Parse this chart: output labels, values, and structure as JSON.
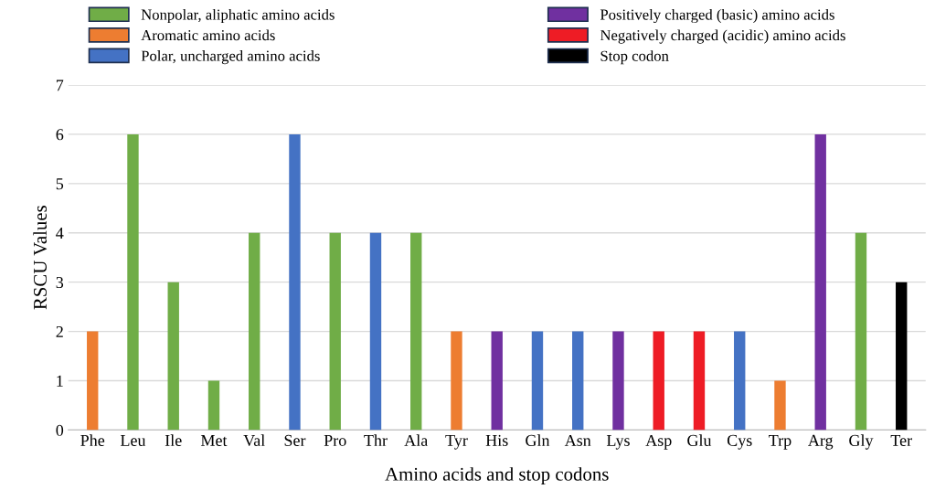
{
  "chart_data": {
    "type": "bar",
    "xlabel": "Amino acids and stop codons",
    "ylabel": "RSCU Values",
    "categories": [
      "Phe",
      "Leu",
      "Ile",
      "Met",
      "Val",
      "Ser",
      "Pro",
      "Thr",
      "Ala",
      "Tyr",
      "His",
      "Gln",
      "Asn",
      "Lys",
      "Asp",
      "Glu",
      "Cys",
      "Trp",
      "Arg",
      "Gly",
      "Ter"
    ],
    "series": [
      {
        "name": "Nonpolar, aliphatic amino acids",
        "color": "#70ad47",
        "values": [
          null,
          6,
          3,
          1,
          4,
          null,
          4,
          null,
          4,
          null,
          null,
          null,
          null,
          null,
          null,
          null,
          null,
          null,
          null,
          4,
          null
        ]
      },
      {
        "name": "Aromatic amino acids",
        "color": "#ed7d31",
        "values": [
          2,
          null,
          null,
          null,
          null,
          null,
          null,
          null,
          null,
          2,
          null,
          null,
          null,
          null,
          null,
          null,
          null,
          1,
          null,
          null,
          null
        ]
      },
      {
        "name": "Polar, uncharged amino acids",
        "color": "#4472c4",
        "values": [
          null,
          null,
          null,
          null,
          null,
          6,
          null,
          4,
          null,
          null,
          null,
          2,
          2,
          null,
          null,
          null,
          2,
          null,
          null,
          null,
          null
        ]
      },
      {
        "name": "Positively charged (basic) amino acids",
        "color": "#7030a0",
        "values": [
          null,
          null,
          null,
          null,
          null,
          null,
          null,
          null,
          null,
          null,
          2,
          null,
          null,
          2,
          null,
          null,
          null,
          null,
          6,
          null,
          null
        ]
      },
      {
        "name": "Negatively charged (acidic) amino acids",
        "color": "#ee1c25",
        "values": [
          null,
          null,
          null,
          null,
          null,
          null,
          null,
          null,
          null,
          null,
          null,
          null,
          null,
          null,
          2,
          2,
          null,
          null,
          null,
          null,
          null
        ]
      },
      {
        "name": "Stop codon",
        "color": "#000000",
        "values": [
          null,
          null,
          null,
          null,
          null,
          null,
          null,
          null,
          null,
          null,
          null,
          null,
          null,
          null,
          null,
          null,
          null,
          null,
          null,
          null,
          3
        ]
      }
    ],
    "ylim": [
      0,
      7
    ],
    "yticks": [
      0,
      1,
      2,
      3,
      4,
      5,
      6,
      7
    ],
    "grid": "y",
    "legend": "top"
  }
}
